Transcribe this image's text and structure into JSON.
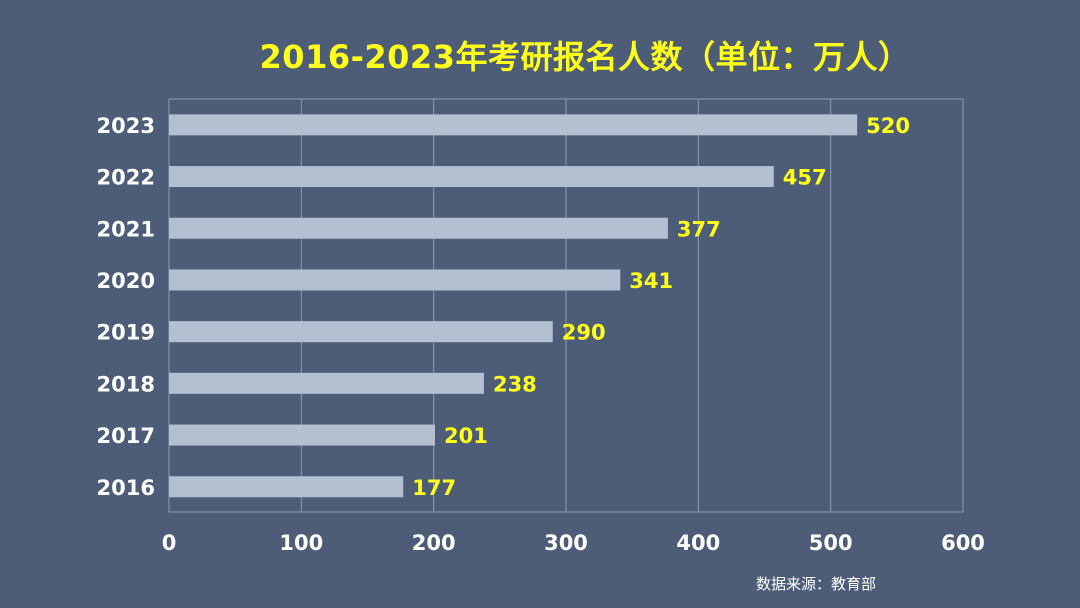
{
  "chart_data": {
    "type": "bar",
    "orientation": "horizontal",
    "title": "2016-2023年考研报名人数（单位：万人）",
    "categories": [
      "2016",
      "2017",
      "2018",
      "2019",
      "2020",
      "2021",
      "2022",
      "2023"
    ],
    "values": [
      177,
      201,
      238,
      290,
      341,
      377,
      457,
      520
    ],
    "xlim": [
      0,
      600
    ],
    "xticks": [
      "0",
      "100",
      "200",
      "300",
      "400",
      "500",
      "600"
    ],
    "grid": true,
    "data_labels": true,
    "colors": {
      "background": "#4d5d78",
      "bar": "#b4c0d2",
      "data_label": "#ffff1a",
      "title": "#ffff1a",
      "axis_text": "#ffffff",
      "grid": "#8d9bb0"
    }
  },
  "footer": {
    "source": "数据来源：教育部"
  }
}
